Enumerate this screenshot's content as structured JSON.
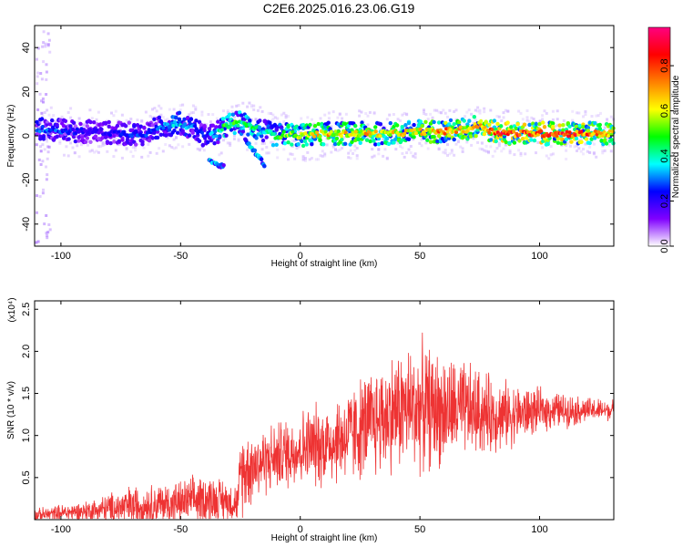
{
  "title": "C2E6.2025.016.23.06.G19",
  "chart_data": [
    {
      "type": "heatmap",
      "xlabel": "Height of straight line (km)",
      "ylabel": "Frequency (Hz)",
      "xlim": [
        -111,
        131
      ],
      "ylim": [
        -50,
        50
      ],
      "x_ticks": [
        "-100",
        "-50",
        "0",
        "50",
        "100"
      ],
      "x_tick_values": [
        -100,
        -50,
        0,
        50,
        100
      ],
      "y_ticks": [
        "40",
        "20",
        "0",
        "-20",
        "-40"
      ],
      "y_tick_values": [
        40,
        20,
        0,
        -20,
        -40
      ],
      "colorbar": {
        "label": "Normalized spectral amplitude",
        "range": [
          0,
          0.97
        ],
        "ticks": [
          "0.0",
          "0.2",
          "0.4",
          "0.6",
          "0.8"
        ],
        "tick_values": [
          0.0,
          0.2,
          0.4,
          0.6,
          0.8
        ],
        "colormap": [
          "#ffffff",
          "#8000ff",
          "#0000ff",
          "#00ffff",
          "#00ff00",
          "#ffff00",
          "#ff8000",
          "#ff0000",
          "#ff0080"
        ]
      },
      "ridge": {
        "x": [
          -105,
          -95,
          -85,
          -75,
          -65,
          -58,
          -52,
          -45,
          -40,
          -35,
          -30,
          -25,
          -20,
          -15,
          -10,
          -5,
          0,
          10,
          20,
          30,
          40,
          50,
          60,
          70,
          75,
          80,
          90,
          100,
          110,
          120,
          130
        ],
        "frequency": [
          3,
          2,
          2,
          1,
          1,
          4,
          6,
          4,
          0,
          1,
          5,
          6,
          4,
          2,
          0,
          1,
          0,
          1,
          1,
          1,
          1,
          2,
          2,
          3,
          5,
          2,
          1,
          1,
          1,
          1,
          1
        ],
        "amplitude": [
          0.3,
          0.25,
          0.2,
          0.25,
          0.28,
          0.3,
          0.4,
          0.3,
          0.25,
          0.4,
          0.55,
          0.45,
          0.5,
          0.35,
          0.5,
          0.6,
          0.55,
          0.7,
          0.65,
          0.7,
          0.65,
          0.7,
          0.75,
          0.7,
          0.75,
          0.85,
          0.85,
          0.85,
          0.85,
          0.8,
          0.7
        ]
      },
      "branches": [
        {
          "x": [
            -23,
            -20,
            -17,
            -15
          ],
          "frequency": [
            -2,
            -6,
            -10,
            -13
          ]
        },
        {
          "x": [
            -38,
            -35,
            -32
          ],
          "frequency": [
            -11,
            -13,
            -14
          ]
        }
      ]
    },
    {
      "type": "line",
      "xlabel": "Height of straight line (km)",
      "ylabel": "SNR (10 * v/v)",
      "exponent_label": "(x10⁴)",
      "xlim": [
        -111,
        131
      ],
      "ylim": [
        0,
        2.6
      ],
      "x_ticks": [
        "-100",
        "-50",
        "0",
        "50",
        "100"
      ],
      "x_tick_values": [
        -100,
        -50,
        0,
        50,
        100
      ],
      "y_ticks": [
        "2.5",
        "2.0",
        "1.5",
        "1.0",
        "0.5"
      ],
      "y_tick_values": [
        2.5,
        2.0,
        1.5,
        1.0,
        0.5
      ],
      "color": "#ee3333",
      "envelope": {
        "x": [
          -110,
          -100,
          -90,
          -80,
          -70,
          -60,
          -50,
          -40,
          -30,
          -26,
          -25,
          -20,
          -15,
          -10,
          0,
          10,
          20,
          30,
          40,
          50,
          60,
          70,
          80,
          90,
          100,
          110,
          120,
          130
        ],
        "mean": [
          0.05,
          0.08,
          0.1,
          0.13,
          0.16,
          0.18,
          0.2,
          0.25,
          0.22,
          0.2,
          0.55,
          0.65,
          0.7,
          0.75,
          0.85,
          0.9,
          1.0,
          1.15,
          1.3,
          1.35,
          1.3,
          1.3,
          1.25,
          1.25,
          1.3,
          1.3,
          1.3,
          1.3
        ],
        "spread": [
          0.08,
          0.1,
          0.12,
          0.18,
          0.25,
          0.25,
          0.25,
          0.3,
          0.25,
          0.2,
          0.5,
          0.45,
          0.4,
          0.4,
          0.45,
          0.5,
          0.55,
          0.65,
          0.7,
          0.75,
          0.65,
          0.55,
          0.45,
          0.35,
          0.25,
          0.2,
          0.15,
          0.12
        ]
      }
    }
  ]
}
